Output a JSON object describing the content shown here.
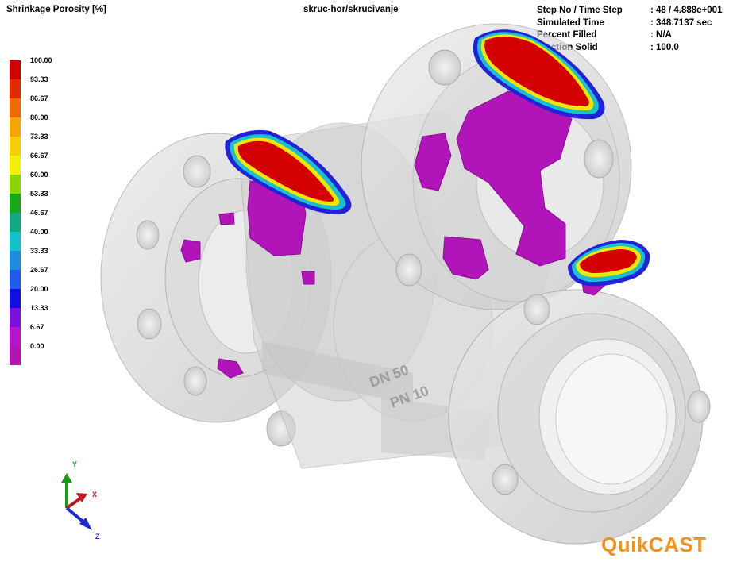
{
  "header": {
    "legend_title": "Shrinkage Porosity [%]",
    "model_path": "skruc-hor/skrucivanje",
    "info": [
      {
        "key": "Step No / Time Step",
        "value": ": 48  /  4.888e+001"
      },
      {
        "key": "Simulated Time",
        "value": ": 348.7137 sec"
      },
      {
        "key": "Percent Filled",
        "value": ": N/A"
      },
      {
        "key": "Fraction Solid",
        "value": ": 100.0"
      }
    ]
  },
  "legend": {
    "items": [
      {
        "label": "100.00",
        "color": "#d40000"
      },
      {
        "label": "93.33",
        "color": "#e62a00"
      },
      {
        "label": "86.67",
        "color": "#f06a00"
      },
      {
        "label": "80.00",
        "color": "#f7a500"
      },
      {
        "label": "73.33",
        "color": "#f5cd00"
      },
      {
        "label": "66.67",
        "color": "#f2f000"
      },
      {
        "label": "60.00",
        "color": "#8ad400"
      },
      {
        "label": "53.33",
        "color": "#16a816"
      },
      {
        "label": "46.67",
        "color": "#14a882"
      },
      {
        "label": "40.00",
        "color": "#0fc2cc"
      },
      {
        "label": "33.33",
        "color": "#1e8cde"
      },
      {
        "label": "26.67",
        "color": "#1e5aeb"
      },
      {
        "label": "20.00",
        "color": "#1010e6"
      },
      {
        "label": "13.33",
        "color": "#7a10e0"
      },
      {
        "label": "6.67",
        "color": "#b814cc"
      },
      {
        "label": "0.00",
        "color": "#b414b4"
      }
    ]
  },
  "axes": {
    "y": "Y",
    "x": "X",
    "z": "Z"
  },
  "casting_text": [
    "DN 50",
    "PN 10"
  ],
  "logo": "QuikCAST"
}
